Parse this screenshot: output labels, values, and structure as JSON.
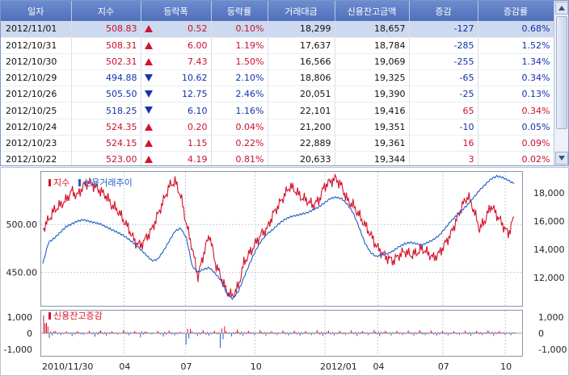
{
  "table": {
    "headers": [
      "일자",
      "지수",
      "등락폭",
      "등락률",
      "거래대금",
      "신용잔고금액",
      "증감",
      "증감률"
    ],
    "rows": [
      {
        "date": "2012/11/01",
        "index": "508.83",
        "dir": "up",
        "change": "0.52",
        "rate": "0.10%",
        "turnover": "18,299",
        "credit": "18,657",
        "delta": "-127",
        "delta_dir": "dn",
        "delta_rate": "0.68%",
        "delta_rate_dir": "dn",
        "selected": true
      },
      {
        "date": "2012/10/31",
        "index": "508.31",
        "dir": "up",
        "change": "6.00",
        "rate": "1.19%",
        "turnover": "17,637",
        "credit": "18,784",
        "delta": "-285",
        "delta_dir": "dn",
        "delta_rate": "1.52%",
        "delta_rate_dir": "dn",
        "selected": false
      },
      {
        "date": "2012/10/30",
        "index": "502.31",
        "dir": "up",
        "change": "7.43",
        "rate": "1.50%",
        "turnover": "16,566",
        "credit": "19,069",
        "delta": "-255",
        "delta_dir": "dn",
        "delta_rate": "1.34%",
        "delta_rate_dir": "dn",
        "selected": false
      },
      {
        "date": "2012/10/29",
        "index": "494.88",
        "dir": "dn",
        "change": "10.62",
        "rate": "2.10%",
        "turnover": "18,806",
        "credit": "19,325",
        "delta": "-65",
        "delta_dir": "dn",
        "delta_rate": "0.34%",
        "delta_rate_dir": "dn",
        "selected": false
      },
      {
        "date": "2012/10/26",
        "index": "505.50",
        "dir": "dn",
        "change": "12.75",
        "rate": "2.46%",
        "turnover": "20,051",
        "credit": "19,390",
        "delta": "-25",
        "delta_dir": "dn",
        "delta_rate": "0.13%",
        "delta_rate_dir": "dn",
        "selected": false
      },
      {
        "date": "2012/10/25",
        "index": "518.25",
        "dir": "dn",
        "change": "6.10",
        "rate": "1.16%",
        "turnover": "22,101",
        "credit": "19,416",
        "delta": "65",
        "delta_dir": "up",
        "delta_rate": "0.34%",
        "delta_rate_dir": "up",
        "selected": false
      },
      {
        "date": "2012/10/24",
        "index": "524.35",
        "dir": "up",
        "change": "0.20",
        "rate": "0.04%",
        "turnover": "21,200",
        "credit": "19,351",
        "delta": "-10",
        "delta_dir": "dn",
        "delta_rate": "0.05%",
        "delta_rate_dir": "dn",
        "selected": false
      },
      {
        "date": "2012/10/23",
        "index": "524.15",
        "dir": "up",
        "change": "1.15",
        "rate": "0.22%",
        "turnover": "22,889",
        "credit": "19,361",
        "delta": "16",
        "delta_dir": "up",
        "delta_rate": "0.09%",
        "delta_rate_dir": "up",
        "selected": false
      },
      {
        "date": "2012/10/22",
        "index": "523.00",
        "dir": "up",
        "change": "4.19",
        "rate": "0.81%",
        "turnover": "20,633",
        "credit": "19,344",
        "delta": "3",
        "delta_dir": "up",
        "delta_rate": "0.02%",
        "delta_rate_dir": "up",
        "selected": false
      }
    ]
  },
  "chart_data": [
    {
      "type": "line",
      "legend": [
        "지수",
        "신용거래추이"
      ],
      "series_colors": {
        "지수": "#d4122c",
        "신용거래추이": "#1f5fc7"
      },
      "x_ticks": [
        "2010/11/30",
        "04",
        "07",
        "10",
        "2012/01",
        "04",
        "07",
        "10"
      ],
      "left_axis": {
        "ticks": [
          "500.00",
          "450.00"
        ],
        "range": [
          415,
          555
        ]
      },
      "right_axis": {
        "ticks": [
          "18,000",
          "16,000",
          "14,000",
          "12,000"
        ],
        "range": [
          10000,
          19500
        ]
      },
      "grid": true,
      "series": [
        {
          "name": "지수",
          "axis": "left",
          "values": [
            495,
            505,
            515,
            520,
            525,
            535,
            530,
            540,
            545,
            540,
            535,
            530,
            520,
            515,
            505,
            495,
            482,
            478,
            486,
            495,
            510,
            525,
            540,
            545,
            530,
            500,
            475,
            445,
            470,
            490,
            460,
            445,
            430,
            425,
            435,
            460,
            470,
            480,
            490,
            495,
            510,
            520,
            530,
            540,
            535,
            528,
            525,
            520,
            525,
            540,
            545,
            548,
            540,
            525,
            520,
            510,
            500,
            490,
            478,
            470,
            465,
            462,
            468,
            472,
            468,
            470,
            475,
            470,
            465,
            470,
            480,
            490,
            505,
            520,
            530,
            515,
            495,
            505,
            520,
            510,
            500,
            490,
            508
          ]
        },
        {
          "name": "신용거래추이",
          "axis": "right",
          "values": [
            13000,
            14500,
            14800,
            15200,
            15600,
            15800,
            16000,
            16100,
            16000,
            15900,
            15800,
            15600,
            15400,
            15200,
            15000,
            14700,
            14400,
            14000,
            13600,
            13200,
            13300,
            13900,
            14600,
            15300,
            15500,
            14800,
            12800,
            12400,
            12600,
            12700,
            12300,
            11800,
            10900,
            10500,
            11000,
            12000,
            13000,
            13900,
            14600,
            15100,
            15400,
            15800,
            16100,
            16300,
            16400,
            16500,
            16600,
            16800,
            17000,
            17300,
            17600,
            17700,
            17600,
            17200,
            16600,
            15600,
            14500,
            13800,
            13500,
            13600,
            13700,
            13900,
            14200,
            14400,
            14500,
            14400,
            14300,
            14500,
            14700,
            15000,
            15500,
            16000,
            16400,
            16800,
            17200,
            17700,
            18200,
            18600,
            19000,
            19200,
            19100,
            18900,
            18657
          ]
        }
      ]
    },
    {
      "type": "bar",
      "legend": [
        "신용잔고증감"
      ],
      "series_colors": {
        "신용잔고증감": "#d4122c",
        "negative": "#1f5fc7"
      },
      "left_axis": {
        "ticks": [
          "1,000",
          "0",
          "-1,000"
        ],
        "range": [
          -1400,
          1400
        ]
      },
      "right_axis": {
        "ticks": [
          "1,000",
          "0",
          "-1,000"
        ],
        "range": [
          -1400,
          1400
        ]
      },
      "series": [
        {
          "name": "신용잔고증감",
          "values": [
            1100,
            -300,
            150,
            -120,
            120,
            -180,
            140,
            -100,
            160,
            -220,
            180,
            -150,
            120,
            -90,
            200,
            -130,
            140,
            -260,
            100,
            -80,
            150,
            -200,
            170,
            -140,
            90,
            -700,
            120,
            -180,
            200,
            -150,
            160,
            -900,
            130,
            -200,
            240,
            -170,
            150,
            -120,
            200,
            -160,
            130,
            -110,
            180,
            -140,
            170,
            -150,
            140,
            -120,
            200,
            -170,
            160,
            -130,
            150,
            -110,
            190,
            -170,
            140,
            -120,
            210,
            -180,
            160,
            -140,
            150,
            -110,
            170,
            -150,
            200,
            -120,
            180,
            -160,
            150,
            -130,
            140,
            -100,
            170,
            -150,
            160,
            -120,
            190,
            -170,
            130,
            -110,
            -127
          ]
        }
      ]
    }
  ]
}
